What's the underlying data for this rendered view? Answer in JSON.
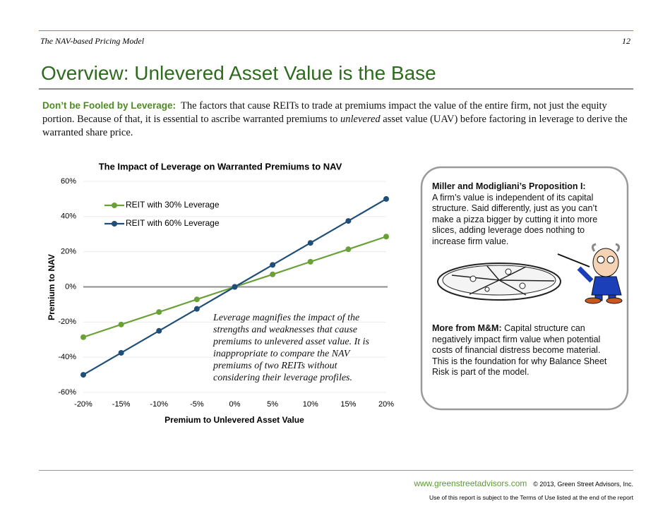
{
  "header": {
    "section": "The NAV-based Pricing Model",
    "page": "12"
  },
  "title": "Overview: Unlevered Asset Value is the Base",
  "intro": {
    "lead": "Don’t be Fooled by Leverage:",
    "text_1": "The factors that cause REITs to trade at premiums impact the value of the entire firm, not just the equity portion.  Because of that, it is essential to ascribe warranted premiums to",
    "emphasis": "unlevered",
    "text_2": "asset value (UAV) before factoring in leverage to derive the warranted share price."
  },
  "chart_data": {
    "type": "line",
    "title": "The Impact of Leverage on Warranted Premiums to NAV",
    "x_label": "Premium to Unlevered Asset Value",
    "y_label": "Premium to NAV",
    "x": [
      -20,
      -15,
      -10,
      -5,
      0,
      5,
      10,
      15,
      20
    ],
    "series": [
      {
        "name": "REIT with 30% Leverage",
        "color": "#6aa038",
        "values": [
          -28.6,
          -21.4,
          -14.3,
          -7.1,
          0,
          7.1,
          14.3,
          21.4,
          28.6
        ]
      },
      {
        "name": "REIT with 60% Leverage",
        "color": "#1f4e79",
        "values": [
          -50,
          -37.5,
          -25,
          -12.5,
          0,
          12.5,
          25,
          37.5,
          50
        ]
      }
    ],
    "xlim": [
      -20,
      20
    ],
    "ylim": [
      -60,
      60
    ],
    "xticks": [
      {
        "value": -20,
        "label": "-20%"
      },
      {
        "value": -15,
        "label": "-15%"
      },
      {
        "value": -10,
        "label": "-10%"
      },
      {
        "value": -5,
        "label": "-5%"
      },
      {
        "value": 0,
        "label": "0%"
      },
      {
        "value": 5,
        "label": "5%"
      },
      {
        "value": 10,
        "label": "10%"
      },
      {
        "value": 15,
        "label": "15%"
      },
      {
        "value": 20,
        "label": "20%"
      }
    ],
    "yticks": [
      {
        "value": -60,
        "label": "-60%"
      },
      {
        "value": -40,
        "label": "-40%"
      },
      {
        "value": -20,
        "label": "-20%"
      },
      {
        "value": 0,
        "label": "0%"
      },
      {
        "value": 20,
        "label": "20%"
      },
      {
        "value": 40,
        "label": "40%"
      },
      {
        "value": 60,
        "label": "60%"
      }
    ],
    "grid": true,
    "legend": "upper left",
    "annotations": [
      "Leverage magnifies the impact of the",
      "strengths and weaknesses that cause",
      "premiums to unlevered asset value.  It is",
      "inappropriate to compare the NAV",
      "premiums of two REITs without",
      "considering their leverage profiles."
    ]
  },
  "callout": {
    "title": "Miller and Modigliani’s Proposition I:",
    "text": "A firm’s value is independent of its capital structure.  Said differently, just as you can’t make a pizza bigger by cutting it into more slices, adding leverage does nothing to increase firm value.",
    "lead_2": "More from M&M:",
    "text_2": "Capital structure can negatively impact firm value when potential costs of financial distress become material.  This is the foundation for why Balance Sheet Risk is part of the model."
  },
  "footer": {
    "url": "www.greenstreetadvisors.com",
    "copyright": "© 2013, Green Street Advisors, Inc.",
    "terms": "Use of this report is subject to the Terms of Use listed at the end of the report"
  }
}
